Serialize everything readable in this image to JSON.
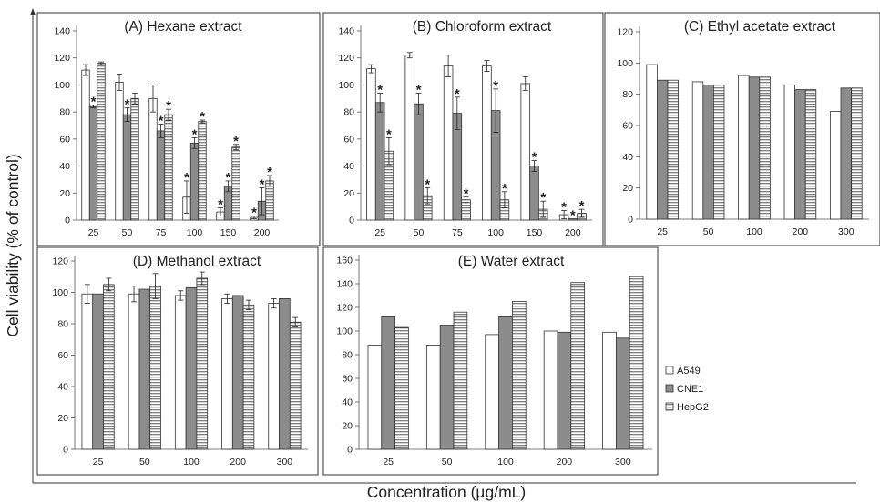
{
  "figure": {
    "ylabel": "Cell viability (% of control)",
    "xlabel": "Concentration (µg/mL)"
  },
  "legend": [
    {
      "name": "A549",
      "pattern": "white"
    },
    {
      "name": "CNE1",
      "pattern": "gray"
    },
    {
      "name": "HepG2",
      "pattern": "hstripe"
    }
  ],
  "colors": {
    "gray_fill": "#8c8c8c",
    "stripe": "#555555",
    "frame": "#333333"
  },
  "chart_data": [
    {
      "type": "bar",
      "title": "(A) Hexane extract",
      "categories": [
        "25",
        "50",
        "75",
        "100",
        "150",
        "200"
      ],
      "ylim": [
        0,
        140
      ],
      "yticks": [
        0,
        20,
        40,
        60,
        80,
        100,
        120,
        140
      ],
      "series": [
        {
          "name": "A549",
          "values": [
            111,
            102,
            90,
            17,
            6,
            2
          ],
          "errors": [
            4,
            6,
            10,
            12,
            3,
            1
          ]
        },
        {
          "name": "CNE1",
          "values": [
            84,
            78,
            66,
            57,
            25,
            14
          ],
          "errors": [
            1,
            5,
            5,
            4,
            4,
            10
          ]
        },
        {
          "name": "HepG2",
          "values": [
            116,
            90,
            78,
            73,
            54,
            29
          ],
          "errors": [
            1,
            4,
            4,
            1,
            2,
            4
          ]
        }
      ],
      "significance": [
        [
          false,
          true,
          false
        ],
        [
          false,
          true,
          false
        ],
        [
          false,
          true,
          true
        ],
        [
          true,
          true,
          true
        ],
        [
          true,
          true,
          true
        ],
        [
          true,
          true,
          true
        ]
      ]
    },
    {
      "type": "bar",
      "title": "(B) Chloroform extract",
      "categories": [
        "25",
        "50",
        "75",
        "100",
        "150",
        "200"
      ],
      "ylim": [
        0,
        140
      ],
      "yticks": [
        0,
        20,
        40,
        60,
        80,
        100,
        120,
        140
      ],
      "series": [
        {
          "name": "A549",
          "values": [
            112,
            122,
            114,
            114,
            101,
            4
          ],
          "errors": [
            3,
            2,
            8,
            4,
            5,
            3
          ]
        },
        {
          "name": "CNE1",
          "values": [
            87,
            86,
            79,
            81,
            40,
            1
          ],
          "errors": [
            7,
            8,
            12,
            16,
            4,
            0
          ]
        },
        {
          "name": "HepG2",
          "values": [
            51,
            18,
            15,
            15,
            8,
            5
          ],
          "errors": [
            10,
            6,
            2,
            6,
            6,
            3
          ]
        }
      ],
      "significance": [
        [
          false,
          true,
          true
        ],
        [
          false,
          true,
          true
        ],
        [
          false,
          true,
          true
        ],
        [
          false,
          true,
          true
        ],
        [
          false,
          true,
          true
        ],
        [
          true,
          true,
          true
        ]
      ]
    },
    {
      "type": "bar",
      "title": "(C) Ethyl acetate extract",
      "categories": [
        "25",
        "50",
        "100",
        "200",
        "300"
      ],
      "ylim": [
        0,
        120
      ],
      "yticks": [
        0,
        20,
        40,
        60,
        80,
        100,
        120
      ],
      "series": [
        {
          "name": "A549",
          "values": [
            99,
            88,
            92,
            86,
            69
          ]
        },
        {
          "name": "CNE1",
          "values": [
            89,
            86,
            91,
            83,
            84
          ]
        },
        {
          "name": "HepG2",
          "values": [
            89,
            86,
            91,
            83,
            84
          ]
        }
      ]
    },
    {
      "type": "bar",
      "title": "(D) Methanol extract",
      "categories": [
        "25",
        "50",
        "100",
        "200",
        "300"
      ],
      "ylim": [
        0,
        120
      ],
      "yticks": [
        0,
        20,
        40,
        60,
        80,
        100,
        120
      ],
      "series": [
        {
          "name": "A549",
          "values": [
            99,
            99,
            98,
            96,
            93
          ],
          "errors": [
            6,
            5,
            3,
            3,
            3
          ]
        },
        {
          "name": "CNE1",
          "values": [
            99,
            102,
            103,
            98,
            96
          ],
          "errors": [
            0,
            0,
            0,
            0,
            0
          ]
        },
        {
          "name": "HepG2",
          "values": [
            105,
            104,
            109,
            92,
            81
          ],
          "errors": [
            4,
            8,
            4,
            3,
            3
          ]
        }
      ]
    },
    {
      "type": "bar",
      "title": "(E) Water extract",
      "categories": [
        "25",
        "50",
        "100",
        "200",
        "300"
      ],
      "ylim": [
        0,
        160
      ],
      "yticks": [
        0,
        20,
        40,
        60,
        80,
        100,
        120,
        140,
        160
      ],
      "series": [
        {
          "name": "A549",
          "values": [
            88,
            88,
            97,
            100,
            99
          ]
        },
        {
          "name": "CNE1",
          "values": [
            112,
            105,
            112,
            99,
            94
          ]
        },
        {
          "name": "HepG2",
          "values": [
            103,
            116,
            125,
            141,
            146
          ]
        }
      ]
    }
  ]
}
